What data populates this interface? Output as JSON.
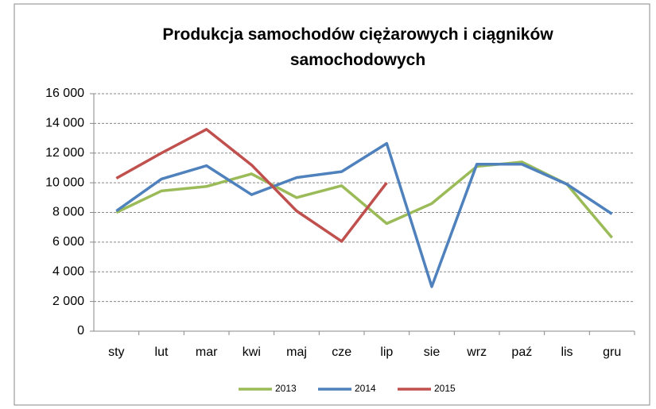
{
  "chart_data": {
    "type": "line",
    "title": "Produkcja samochodów ciężarowych i ciągników samochodowych",
    "categories": [
      "sty",
      "lut",
      "mar",
      "kwi",
      "maj",
      "cze",
      "lip",
      "sie",
      "wrz",
      "paź",
      "lis",
      "gru"
    ],
    "series": [
      {
        "name": "2013",
        "color": "#9bbb59",
        "values": [
          8000,
          9450,
          9750,
          10600,
          9000,
          9800,
          7250,
          8600,
          11100,
          11400,
          9900,
          6300
        ]
      },
      {
        "name": "2014",
        "color": "#4f81bd",
        "values": [
          8100,
          10250,
          11150,
          9200,
          10350,
          10750,
          12650,
          3000,
          11250,
          11250,
          9900,
          7900
        ]
      },
      {
        "name": "2015",
        "color": "#c0504d",
        "values": [
          10300,
          12000,
          13600,
          11200,
          8100,
          6050,
          10000,
          null,
          null,
          null,
          null,
          null
        ]
      }
    ],
    "ylim": [
      0,
      16000
    ],
    "yticks": [
      0,
      {
        "value": 2000,
        "label": "2 000"
      },
      {
        "value": 4000,
        "label": "4 000"
      },
      {
        "value": 6000,
        "label": "6 000"
      },
      {
        "value": 8000,
        "label": "8 000"
      },
      {
        "value": 10000,
        "label": "10 000"
      },
      {
        "value": 12000,
        "label": "12 000"
      },
      {
        "value": 14000,
        "label": "14 000"
      },
      {
        "value": 16000,
        "label": "16 000"
      }
    ],
    "grid": true,
    "legend": "bottom"
  }
}
